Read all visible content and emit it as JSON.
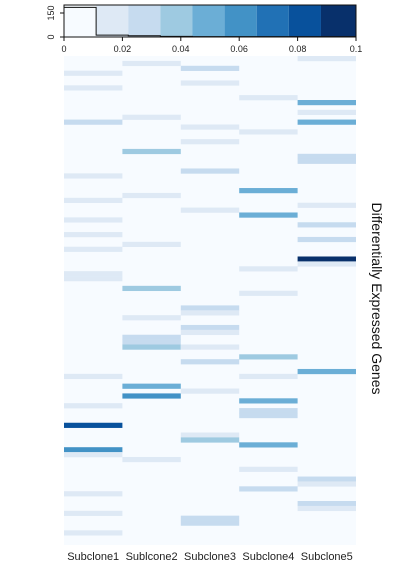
{
  "chart_data": [
    {
      "type": "bar",
      "role": "color-key-histogram",
      "x_range": [
        0,
        0.1
      ],
      "x_ticks": [
        "0",
        "0.02",
        "0.04",
        "0.06",
        "0.08",
        "0.1"
      ],
      "y_ticks": [
        "0",
        "150"
      ],
      "y_range": [
        0,
        200
      ],
      "color_breaks": [
        0,
        0.011,
        0.022,
        0.033,
        0.044,
        0.055,
        0.066,
        0.077,
        0.088,
        0.1
      ],
      "color_scale": [
        "#f7fbff",
        "#dee9f5",
        "#c6dbef",
        "#9ecae1",
        "#6baed6",
        "#4292c6",
        "#2171b5",
        "#08519c",
        "#08306b"
      ],
      "histogram": [
        {
          "x0": 0.0,
          "x1": 0.011,
          "count": 185
        },
        {
          "x0": 0.011,
          "x1": 0.022,
          "count": 12
        },
        {
          "x0": 0.022,
          "x1": 0.033,
          "count": 8
        },
        {
          "x0": 0.033,
          "x1": 0.044,
          "count": 4
        },
        {
          "x0": 0.044,
          "x1": 0.1,
          "count": 2
        }
      ]
    },
    {
      "type": "heatmap",
      "columns": [
        "Subclone1",
        "Sublcone2",
        "Subclone3",
        "Subclone4",
        "Subclone5"
      ],
      "ylabel": "Differentially Expressed Genes",
      "row_count": 100,
      "background_value": 0,
      "cells": [
        {
          "col": 0,
          "rows": [
            3
          ],
          "value": 0.015
        },
        {
          "col": 0,
          "rows": [
            6
          ],
          "value": 0.018
        },
        {
          "col": 0,
          "rows": [
            13
          ],
          "value": 0.025
        },
        {
          "col": 0,
          "rows": [
            24
          ],
          "value": 0.02
        },
        {
          "col": 0,
          "rows": [
            29
          ],
          "value": 0.013
        },
        {
          "col": 0,
          "rows": [
            33
          ],
          "value": 0.02
        },
        {
          "col": 0,
          "rows": [
            36
          ],
          "value": 0.016
        },
        {
          "col": 0,
          "rows": [
            39
          ],
          "value": 0.022
        },
        {
          "col": 0,
          "rows": [
            44,
            45
          ],
          "value": 0.013
        },
        {
          "col": 0,
          "rows": [
            65
          ],
          "value": 0.013
        },
        {
          "col": 0,
          "rows": [
            71
          ],
          "value": 0.015
        },
        {
          "col": 0,
          "rows": [
            75
          ],
          "value": 0.085
        },
        {
          "col": 0,
          "rows": [
            80
          ],
          "value": 0.06
        },
        {
          "col": 0,
          "rows": [
            81
          ],
          "value": 0.02
        },
        {
          "col": 0,
          "rows": [
            89
          ],
          "value": 0.015
        },
        {
          "col": 0,
          "rows": [
            93
          ],
          "value": 0.018
        },
        {
          "col": 0,
          "rows": [
            97
          ],
          "value": 0.02
        },
        {
          "col": 1,
          "rows": [
            1
          ],
          "value": 0.022
        },
        {
          "col": 1,
          "rows": [
            12
          ],
          "value": 0.015
        },
        {
          "col": 1,
          "rows": [
            19
          ],
          "value": 0.04
        },
        {
          "col": 1,
          "rows": [
            28
          ],
          "value": 0.02
        },
        {
          "col": 1,
          "rows": [
            38
          ],
          "value": 0.022
        },
        {
          "col": 1,
          "rows": [
            47
          ],
          "value": 0.035
        },
        {
          "col": 1,
          "rows": [
            53
          ],
          "value": 0.015
        },
        {
          "col": 1,
          "rows": [
            57,
            58
          ],
          "value": 0.025
        },
        {
          "col": 1,
          "rows": [
            59
          ],
          "value": 0.035
        },
        {
          "col": 1,
          "rows": [
            67
          ],
          "value": 0.045
        },
        {
          "col": 1,
          "rows": [
            69
          ],
          "value": 0.065
        },
        {
          "col": 1,
          "rows": [
            82
          ],
          "value": 0.015
        },
        {
          "col": 2,
          "rows": [
            2
          ],
          "value": 0.025
        },
        {
          "col": 2,
          "rows": [
            5
          ],
          "value": 0.015
        },
        {
          "col": 2,
          "rows": [
            14
          ],
          "value": 0.015
        },
        {
          "col": 2,
          "rows": [
            17
          ],
          "value": 0.018
        },
        {
          "col": 2,
          "rows": [
            23
          ],
          "value": 0.025
        },
        {
          "col": 2,
          "rows": [
            31
          ],
          "value": 0.018
        },
        {
          "col": 2,
          "rows": [
            51
          ],
          "value": 0.025
        },
        {
          "col": 2,
          "rows": [
            52
          ],
          "value": 0.018
        },
        {
          "col": 2,
          "rows": [
            55
          ],
          "value": 0.03
        },
        {
          "col": 2,
          "rows": [
            56
          ],
          "value": 0.018
        },
        {
          "col": 2,
          "rows": [
            59
          ],
          "value": 0.015
        },
        {
          "col": 2,
          "rows": [
            62
          ],
          "value": 0.025
        },
        {
          "col": 2,
          "rows": [
            68
          ],
          "value": 0.022
        },
        {
          "col": 2,
          "rows": [
            77
          ],
          "value": 0.018
        },
        {
          "col": 2,
          "rows": [
            78
          ],
          "value": 0.04
        },
        {
          "col": 2,
          "rows": [
            94,
            95
          ],
          "value": 0.025
        },
        {
          "col": 3,
          "rows": [
            8
          ],
          "value": 0.015
        },
        {
          "col": 3,
          "rows": [
            15
          ],
          "value": 0.013
        },
        {
          "col": 3,
          "rows": [
            27
          ],
          "value": 0.045
        },
        {
          "col": 3,
          "rows": [
            32
          ],
          "value": 0.045
        },
        {
          "col": 3,
          "rows": [
            43
          ],
          "value": 0.02
        },
        {
          "col": 3,
          "rows": [
            48
          ],
          "value": 0.022
        },
        {
          "col": 3,
          "rows": [
            61
          ],
          "value": 0.04
        },
        {
          "col": 3,
          "rows": [
            65
          ],
          "value": 0.022
        },
        {
          "col": 3,
          "rows": [
            70
          ],
          "value": 0.045
        },
        {
          "col": 3,
          "rows": [
            72,
            73
          ],
          "value": 0.025
        },
        {
          "col": 3,
          "rows": [
            79
          ],
          "value": 0.045
        },
        {
          "col": 3,
          "rows": [
            84
          ],
          "value": 0.015
        },
        {
          "col": 3,
          "rows": [
            88
          ],
          "value": 0.025
        },
        {
          "col": 4,
          "rows": [
            0
          ],
          "value": 0.013
        },
        {
          "col": 4,
          "rows": [
            9
          ],
          "value": 0.045
        },
        {
          "col": 4,
          "rows": [
            11
          ],
          "value": 0.018
        },
        {
          "col": 4,
          "rows": [
            13
          ],
          "value": 0.045
        },
        {
          "col": 4,
          "rows": [
            20,
            21
          ],
          "value": 0.025
        },
        {
          "col": 4,
          "rows": [
            30
          ],
          "value": 0.015
        },
        {
          "col": 4,
          "rows": [
            34
          ],
          "value": 0.025
        },
        {
          "col": 4,
          "rows": [
            37
          ],
          "value": 0.03
        },
        {
          "col": 4,
          "rows": [
            41
          ],
          "value": 0.095
        },
        {
          "col": 4,
          "rows": [
            42
          ],
          "value": 0.013
        },
        {
          "col": 4,
          "rows": [
            64
          ],
          "value": 0.055
        },
        {
          "col": 4,
          "rows": [
            86
          ],
          "value": 0.03
        },
        {
          "col": 4,
          "rows": [
            87
          ],
          "value": 0.015
        },
        {
          "col": 4,
          "rows": [
            91
          ],
          "value": 0.03
        },
        {
          "col": 4,
          "rows": [
            92
          ],
          "value": 0.015
        }
      ]
    }
  ]
}
